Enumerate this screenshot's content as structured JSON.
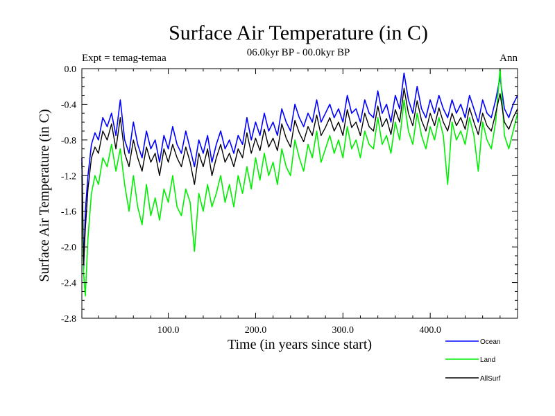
{
  "chart_data": {
    "type": "line",
    "title": "Surface Air Temperature (in C)",
    "subtitle": "06.0kyr BP - 00.0kyr BP",
    "experiment": "Expt = temag-temaa",
    "season": "Ann",
    "xlabel": "Time (in years since start)",
    "ylabel": "Surface Air Temperature (in C)",
    "xlim": [
      1,
      500
    ],
    "ylim": [
      -2.8,
      0.0
    ],
    "xticks": [
      {
        "value": 100,
        "label": "100.0"
      },
      {
        "value": 200,
        "label": "200.0"
      },
      {
        "value": 300,
        "label": "300.0"
      },
      {
        "value": 400,
        "label": "400.0"
      }
    ],
    "yticks": [
      {
        "value": 0.0,
        "label": "0.0"
      },
      {
        "value": -0.4,
        "label": "-0.4"
      },
      {
        "value": -0.8,
        "label": "-0.8"
      },
      {
        "value": -1.2,
        "label": "-1.2"
      },
      {
        "value": -1.6,
        "label": "-1.6"
      },
      {
        "value": -2.0,
        "label": "-2.0"
      },
      {
        "value": -2.4,
        "label": "-2.4"
      },
      {
        "value": -2.8,
        "label": "-2.8"
      }
    ],
    "legend_position": "bottom-right",
    "series": [
      {
        "name": "Ocean",
        "color": "#0000ff",
        "x": [
          1,
          3,
          5,
          8,
          12,
          16,
          20,
          25,
          30,
          35,
          40,
          45,
          50,
          55,
          60,
          65,
          70,
          75,
          80,
          85,
          90,
          95,
          100,
          105,
          110,
          115,
          120,
          125,
          130,
          135,
          140,
          145,
          150,
          155,
          160,
          165,
          170,
          175,
          180,
          185,
          190,
          195,
          200,
          205,
          210,
          215,
          220,
          225,
          230,
          235,
          240,
          245,
          250,
          255,
          260,
          265,
          270,
          275,
          280,
          285,
          290,
          295,
          300,
          305,
          310,
          315,
          320,
          325,
          330,
          335,
          340,
          345,
          350,
          355,
          360,
          365,
          370,
          375,
          380,
          385,
          390,
          395,
          400,
          405,
          410,
          415,
          420,
          425,
          430,
          435,
          440,
          445,
          450,
          455,
          460,
          465,
          470,
          475,
          480,
          485,
          490,
          495,
          500
        ],
        "values": [
          -1.0,
          -2.25,
          -1.6,
          -1.2,
          -0.85,
          -0.72,
          -0.8,
          -0.55,
          -0.65,
          -0.5,
          -0.75,
          -0.35,
          -0.8,
          -0.95,
          -0.6,
          -0.85,
          -1.0,
          -0.7,
          -0.9,
          -0.8,
          -1.05,
          -0.75,
          -0.9,
          -0.65,
          -0.85,
          -0.95,
          -0.7,
          -0.9,
          -1.1,
          -0.8,
          -0.95,
          -0.75,
          -1.05,
          -0.85,
          -0.7,
          -0.9,
          -0.8,
          -0.95,
          -0.75,
          -0.85,
          -0.55,
          -0.8,
          -0.6,
          -0.75,
          -0.5,
          -0.7,
          -0.6,
          -0.75,
          -0.45,
          -0.6,
          -0.7,
          -0.4,
          -0.55,
          -0.65,
          -0.5,
          -0.6,
          -0.35,
          -0.6,
          -0.5,
          -0.4,
          -0.55,
          -0.45,
          -0.6,
          -0.3,
          -0.5,
          -0.45,
          -0.6,
          -0.35,
          -0.5,
          -0.55,
          -0.25,
          -0.5,
          -0.4,
          -0.6,
          -0.3,
          -0.45,
          -0.05,
          -0.35,
          -0.5,
          -0.2,
          -0.45,
          -0.55,
          -0.35,
          -0.5,
          -0.3,
          -0.45,
          -0.55,
          -0.35,
          -0.5,
          -0.4,
          -0.55,
          -0.3,
          -0.45,
          -0.6,
          -0.35,
          -0.5,
          -0.55,
          -0.35,
          -0.1,
          -0.45,
          -0.55,
          -0.4,
          -0.3
        ]
      },
      {
        "name": "Land",
        "color": "#00ee00",
        "x": [
          1,
          3,
          5,
          8,
          12,
          16,
          20,
          25,
          30,
          35,
          40,
          45,
          50,
          55,
          60,
          65,
          70,
          75,
          80,
          85,
          90,
          95,
          100,
          105,
          110,
          115,
          120,
          125,
          130,
          135,
          140,
          145,
          150,
          155,
          160,
          165,
          170,
          175,
          180,
          185,
          190,
          195,
          200,
          205,
          210,
          215,
          220,
          225,
          230,
          235,
          240,
          245,
          250,
          255,
          260,
          265,
          270,
          275,
          280,
          285,
          290,
          295,
          300,
          305,
          310,
          315,
          320,
          325,
          330,
          335,
          340,
          345,
          350,
          355,
          360,
          365,
          370,
          375,
          380,
          385,
          390,
          395,
          400,
          405,
          410,
          415,
          420,
          425,
          430,
          435,
          440,
          445,
          450,
          455,
          460,
          465,
          470,
          475,
          480,
          485,
          490,
          495,
          500
        ],
        "values": [
          -1.2,
          -2.3,
          -2.55,
          -1.9,
          -1.4,
          -1.2,
          -1.3,
          -1.0,
          -1.1,
          -0.85,
          -1.15,
          -0.9,
          -1.3,
          -1.6,
          -1.2,
          -1.55,
          -1.75,
          -1.3,
          -1.65,
          -1.45,
          -1.7,
          -1.35,
          -1.5,
          -1.2,
          -1.55,
          -1.65,
          -1.35,
          -1.5,
          -2.05,
          -1.4,
          -1.6,
          -1.3,
          -1.55,
          -1.4,
          -1.2,
          -1.5,
          -1.3,
          -1.55,
          -1.2,
          -1.4,
          -1.1,
          -1.35,
          -1.0,
          -1.25,
          -0.95,
          -1.2,
          -1.05,
          -1.3,
          -0.9,
          -1.1,
          -1.2,
          -0.8,
          -1.0,
          -1.15,
          -0.85,
          -1.0,
          -0.7,
          -1.05,
          -0.9,
          -0.75,
          -0.95,
          -0.8,
          -1.0,
          -0.65,
          -0.9,
          -0.8,
          -1.0,
          -0.7,
          -0.85,
          -0.9,
          -0.55,
          -0.85,
          -0.75,
          -0.95,
          -0.6,
          -0.8,
          -0.35,
          -0.7,
          -0.85,
          -0.5,
          -0.75,
          -0.9,
          -0.65,
          -0.8,
          -0.55,
          -0.75,
          -1.3,
          -0.6,
          -0.8,
          -0.7,
          -0.85,
          -0.55,
          -0.75,
          -1.15,
          -0.6,
          -0.8,
          -0.9,
          -0.6,
          0.0,
          -0.75,
          -0.9,
          -0.7,
          -0.5
        ]
      },
      {
        "name": "AllSurf",
        "color": "#000000",
        "x": [
          1,
          3,
          5,
          8,
          12,
          16,
          20,
          25,
          30,
          35,
          40,
          45,
          50,
          55,
          60,
          65,
          70,
          75,
          80,
          85,
          90,
          95,
          100,
          105,
          110,
          115,
          120,
          125,
          130,
          135,
          140,
          145,
          150,
          155,
          160,
          165,
          170,
          175,
          180,
          185,
          190,
          195,
          200,
          205,
          210,
          215,
          220,
          225,
          230,
          235,
          240,
          245,
          250,
          255,
          260,
          265,
          270,
          275,
          280,
          285,
          290,
          295,
          300,
          305,
          310,
          315,
          320,
          325,
          330,
          335,
          340,
          345,
          350,
          355,
          360,
          365,
          370,
          375,
          380,
          385,
          390,
          395,
          400,
          405,
          410,
          415,
          420,
          425,
          430,
          435,
          440,
          445,
          450,
          455,
          460,
          465,
          470,
          475,
          480,
          485,
          490,
          495,
          500
        ],
        "values": [
          -1.05,
          -2.2,
          -1.8,
          -1.35,
          -1.0,
          -0.88,
          -0.95,
          -0.7,
          -0.8,
          -0.62,
          -0.9,
          -0.55,
          -0.95,
          -1.1,
          -0.8,
          -1.0,
          -1.15,
          -0.88,
          -1.05,
          -0.95,
          -1.2,
          -0.9,
          -1.05,
          -0.85,
          -1.0,
          -1.1,
          -0.88,
          -1.05,
          -1.3,
          -0.95,
          -1.1,
          -0.9,
          -1.2,
          -1.0,
          -0.85,
          -1.05,
          -0.95,
          -1.1,
          -0.9,
          -1.0,
          -0.72,
          -0.95,
          -0.78,
          -0.92,
          -0.68,
          -0.88,
          -0.78,
          -0.92,
          -0.62,
          -0.78,
          -0.88,
          -0.58,
          -0.72,
          -0.82,
          -0.65,
          -0.75,
          -0.52,
          -0.75,
          -0.66,
          -0.55,
          -0.7,
          -0.6,
          -0.75,
          -0.46,
          -0.66,
          -0.6,
          -0.75,
          -0.5,
          -0.65,
          -0.7,
          -0.42,
          -0.65,
          -0.56,
          -0.74,
          -0.46,
          -0.6,
          -0.22,
          -0.5,
          -0.64,
          -0.36,
          -0.58,
          -0.7,
          -0.5,
          -0.64,
          -0.44,
          -0.6,
          -0.7,
          -0.5,
          -0.64,
          -0.55,
          -0.68,
          -0.44,
          -0.6,
          -0.74,
          -0.5,
          -0.64,
          -0.7,
          -0.5,
          -0.28,
          -0.6,
          -0.68,
          -0.55,
          -0.45
        ]
      }
    ]
  }
}
